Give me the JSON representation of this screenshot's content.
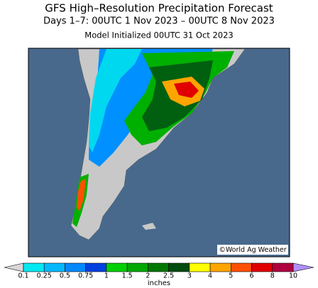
{
  "header": {
    "title": "GFS High–Resolution Precipitation Forecast",
    "subtitle": "Days 1–7: 00UTC 1 Nov 2023 – 00UTC 8 Nov 2023",
    "model_init": "Model Initialized 00UTC 31 Oct 2023"
  },
  "credit": "©World Ag Weather",
  "legend": {
    "unit": "inches",
    "labels": [
      0.1,
      0.25,
      0.5,
      0.75,
      1,
      1.5,
      2,
      2.5,
      3,
      4,
      5,
      6,
      8,
      10
    ],
    "under_color": "#d8d8d8",
    "colors": [
      "#00e8f0",
      "#00b8ff",
      "#0088ff",
      "#0040e0",
      "#00d000",
      "#00a800",
      "#007800",
      "#004c10",
      "#ffff00",
      "#ffa500",
      "#ff5000",
      "#e00000",
      "#b00040",
      "#c000b0"
    ],
    "over_color": "#b090ff"
  }
}
